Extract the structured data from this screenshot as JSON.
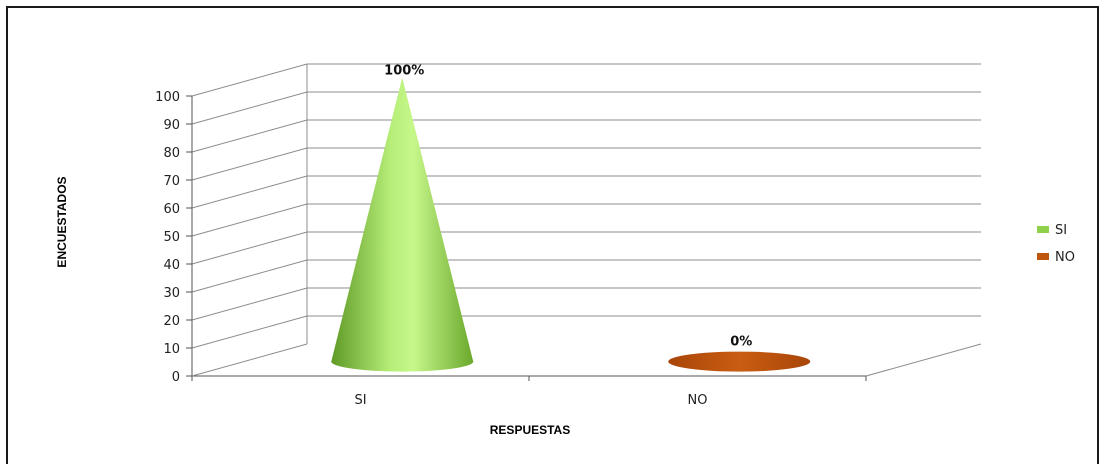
{
  "chart_data": {
    "type": "bar",
    "style": "3d-cone",
    "categories": [
      "SI",
      "NO"
    ],
    "series": [
      {
        "name": "SI",
        "values": [
          100,
          null
        ],
        "color": "#8fd14a",
        "data_label": "100%"
      },
      {
        "name": "NO",
        "values": [
          null,
          0
        ],
        "color": "#c0560e",
        "data_label": "0%"
      }
    ],
    "xlabel": "RESPUESTAS",
    "ylabel": "ENCUESTADOS",
    "ylim": [
      0,
      100
    ],
    "yticks": [
      0,
      10,
      20,
      30,
      40,
      50,
      60,
      70,
      80,
      90,
      100
    ],
    "grid": true,
    "legend": "right",
    "colors": {
      "grid": "#8c8c8c",
      "frame": "#1a1a1a"
    }
  }
}
